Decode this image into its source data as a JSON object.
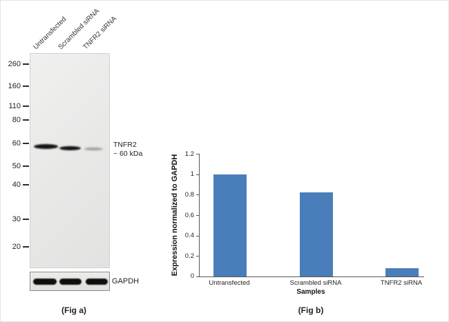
{
  "figure": {
    "fig_a": {
      "caption": "(Fig a)",
      "lanes": [
        "Untransfected",
        "Scrambled siRNA",
        "TNFR2 siRNA"
      ],
      "markers": [
        "260",
        "160",
        "110",
        "80",
        "60",
        "50",
        "40",
        "30",
        "20"
      ],
      "target_label": "TNFR2",
      "target_size": "~ 60 kDa",
      "loading_control": "GAPDH",
      "bands": [
        {
          "lane": "Untransfected",
          "target": "TNFR2",
          "intensity": "strong"
        },
        {
          "lane": "Scrambled siRNA",
          "target": "TNFR2",
          "intensity": "strong"
        },
        {
          "lane": "TNFR2 siRNA",
          "target": "TNFR2",
          "intensity": "faint"
        }
      ]
    },
    "fig_b": {
      "caption": "(Fig b)"
    }
  },
  "chart_data": {
    "type": "bar",
    "categories": [
      "Untransfected",
      "Scrambled siRNA",
      "TNFR2 siRNA"
    ],
    "values": [
      1.0,
      0.82,
      0.08
    ],
    "title": "",
    "xlabel": "Samples",
    "ylabel": "Expression normalized to GAPDH",
    "ylim": [
      0,
      1.2
    ],
    "yticks": [
      "0",
      "0.2",
      "0.4",
      "0.6",
      "0.8",
      "1",
      "1.2"
    ],
    "bar_color": "#4a7ebb",
    "grid": false,
    "legend": false
  }
}
